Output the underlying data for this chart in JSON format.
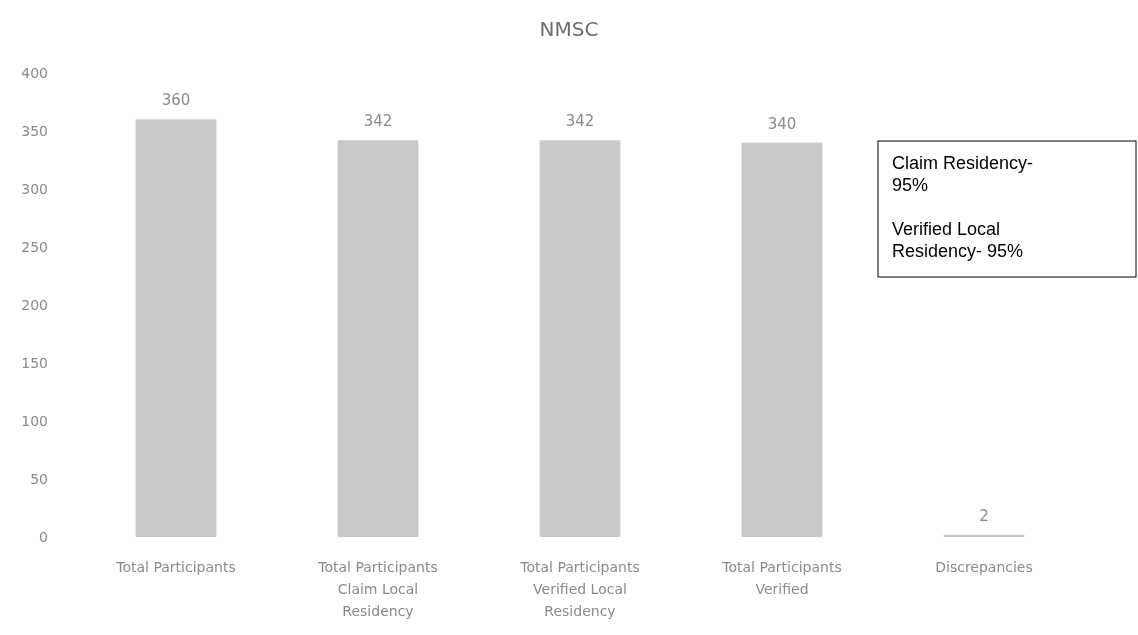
{
  "chart_data": {
    "type": "bar",
    "title": "NMSC",
    "categories": [
      "Total Participants",
      "Total Participants Claim Local Residency",
      "Total Participants Verified Local Residency",
      "Total Participants Verified",
      "Discrepancies"
    ],
    "values": [
      360,
      342,
      342,
      340,
      2
    ],
    "color": "#c9c9c9",
    "ylim": [
      0,
      400
    ],
    "yticks": [
      0,
      50,
      100,
      150,
      200,
      250,
      300,
      350,
      400
    ],
    "grid": false,
    "data_labels": true,
    "annotations": [
      "Claim Residency- 95%",
      "Verified Local Residency- 95%"
    ]
  }
}
